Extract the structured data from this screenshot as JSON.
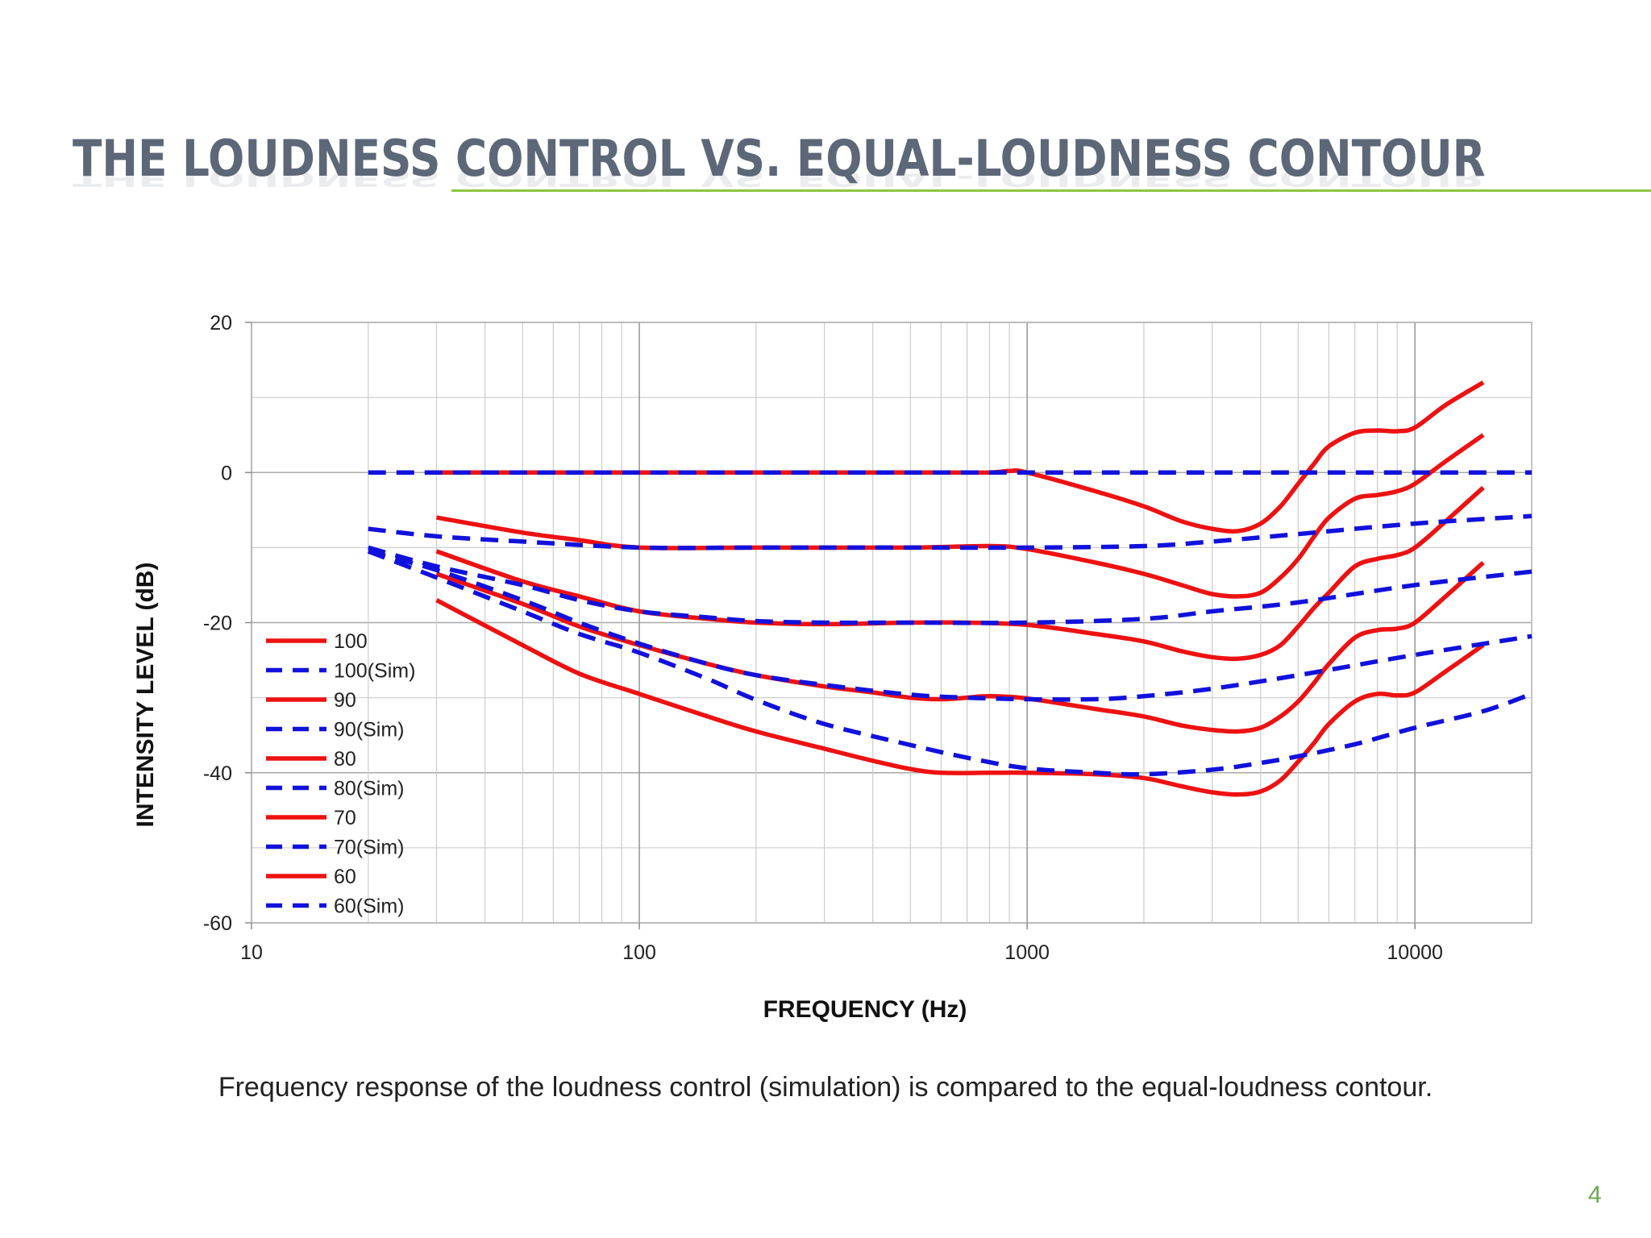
{
  "slide": {
    "title": "THE LOUDNESS CONTROL VS. EQUAL-LOUDNESS CONTOUR",
    "caption": "Frequency response of the loudness control (simulation) is compared to the equal-loudness contour.",
    "page_number": "4",
    "accent_color": "#8cc63f",
    "title_color": "#5c6778"
  },
  "chart_data": {
    "type": "line",
    "title": "",
    "xlabel": "FREQUENCY (Hz)",
    "ylabel": "INTENSITY LEVEL (dB)",
    "xscale": "log",
    "xlim": [
      10,
      20000
    ],
    "ylim": [
      -60,
      20
    ],
    "xticks": [
      10,
      100,
      1000,
      10000
    ],
    "xtick_labels": [
      "10",
      "100",
      "1000",
      "10000"
    ],
    "yticks": [
      -60,
      -40,
      -20,
      0,
      20
    ],
    "ytick_labels": [
      "-60",
      "-40",
      "-20",
      "0",
      "20"
    ],
    "grid": true,
    "legend_position": "bottom-left",
    "series": [
      {
        "name": "100",
        "color": "#ee1111",
        "style": "solid",
        "points": [
          [
            30,
            0
          ],
          [
            50,
            0
          ],
          [
            100,
            0
          ],
          [
            300,
            0
          ],
          [
            600,
            0
          ],
          [
            800,
            0
          ],
          [
            900,
            0.2
          ],
          [
            1000,
            0
          ],
          [
            1500,
            -2.5
          ],
          [
            2000,
            -4.5
          ],
          [
            2500,
            -6.5
          ],
          [
            3000,
            -7.5
          ],
          [
            3500,
            -7.8
          ],
          [
            4000,
            -6.8
          ],
          [
            4500,
            -4.5
          ],
          [
            5000,
            -1.5
          ],
          [
            5500,
            1.2
          ],
          [
            6000,
            3.5
          ],
          [
            7000,
            5.3
          ],
          [
            8000,
            5.6
          ],
          [
            9000,
            5.5
          ],
          [
            10000,
            6
          ],
          [
            12000,
            9
          ],
          [
            15000,
            12
          ]
        ]
      },
      {
        "name": "100(Sim)",
        "color": "#1111dd",
        "style": "dashed",
        "points": [
          [
            20,
            0
          ],
          [
            50,
            0
          ],
          [
            100,
            0
          ],
          [
            1000,
            0
          ],
          [
            5000,
            0
          ],
          [
            10000,
            0
          ],
          [
            20000,
            0
          ]
        ]
      },
      {
        "name": "90",
        "color": "#ee1111",
        "style": "solid",
        "points": [
          [
            30,
            -6
          ],
          [
            50,
            -8
          ],
          [
            70,
            -9
          ],
          [
            100,
            -10
          ],
          [
            200,
            -10
          ],
          [
            500,
            -10
          ],
          [
            800,
            -9.8
          ],
          [
            1000,
            -10.2
          ],
          [
            1500,
            -12
          ],
          [
            2000,
            -13.5
          ],
          [
            2500,
            -15
          ],
          [
            3000,
            -16.2
          ],
          [
            3500,
            -16.5
          ],
          [
            4000,
            -16
          ],
          [
            4500,
            -14
          ],
          [
            5000,
            -11.5
          ],
          [
            5500,
            -8.5
          ],
          [
            6000,
            -6
          ],
          [
            7000,
            -3.5
          ],
          [
            8000,
            -3
          ],
          [
            9000,
            -2.5
          ],
          [
            10000,
            -1.5
          ],
          [
            12000,
            1.5
          ],
          [
            15000,
            5
          ]
        ]
      },
      {
        "name": "90(Sim)",
        "color": "#1111dd",
        "style": "dashed",
        "points": [
          [
            20,
            -7.5
          ],
          [
            30,
            -8.5
          ],
          [
            50,
            -9.2
          ],
          [
            100,
            -10
          ],
          [
            200,
            -10
          ],
          [
            500,
            -10
          ],
          [
            1000,
            -10
          ],
          [
            2000,
            -9.8
          ],
          [
            3000,
            -9.2
          ],
          [
            5000,
            -8.2
          ],
          [
            10000,
            -6.8
          ],
          [
            20000,
            -5.8
          ]
        ]
      },
      {
        "name": "80",
        "color": "#ee1111",
        "style": "solid",
        "points": [
          [
            30,
            -10.5
          ],
          [
            50,
            -14.5
          ],
          [
            70,
            -16.5
          ],
          [
            100,
            -18.5
          ],
          [
            150,
            -19.5
          ],
          [
            200,
            -20
          ],
          [
            300,
            -20.2
          ],
          [
            500,
            -20
          ],
          [
            700,
            -20
          ],
          [
            1000,
            -20.3
          ],
          [
            1500,
            -21.5
          ],
          [
            2000,
            -22.5
          ],
          [
            2500,
            -23.8
          ],
          [
            3000,
            -24.6
          ],
          [
            3500,
            -24.8
          ],
          [
            4000,
            -24.3
          ],
          [
            4500,
            -23
          ],
          [
            5000,
            -20.5
          ],
          [
            5500,
            -18
          ],
          [
            6000,
            -16
          ],
          [
            7000,
            -12.5
          ],
          [
            8000,
            -11.5
          ],
          [
            9000,
            -11
          ],
          [
            10000,
            -10
          ],
          [
            12000,
            -6.5
          ],
          [
            15000,
            -2
          ]
        ]
      },
      {
        "name": "80(Sim)",
        "color": "#1111dd",
        "style": "dashed",
        "points": [
          [
            20,
            -10
          ],
          [
            30,
            -12.5
          ],
          [
            50,
            -15
          ],
          [
            70,
            -17
          ],
          [
            100,
            -18.5
          ],
          [
            150,
            -19.3
          ],
          [
            200,
            -19.8
          ],
          [
            300,
            -20
          ],
          [
            500,
            -20
          ],
          [
            1000,
            -20
          ],
          [
            2000,
            -19.5
          ],
          [
            3000,
            -18.5
          ],
          [
            5000,
            -17.3
          ],
          [
            10000,
            -15
          ],
          [
            20000,
            -13.2
          ]
        ]
      },
      {
        "name": "70",
        "color": "#ee1111",
        "style": "solid",
        "points": [
          [
            30,
            -13.5
          ],
          [
            50,
            -17.5
          ],
          [
            70,
            -20.5
          ],
          [
            100,
            -23
          ],
          [
            150,
            -25.5
          ],
          [
            200,
            -27
          ],
          [
            300,
            -28.5
          ],
          [
            400,
            -29.3
          ],
          [
            500,
            -30
          ],
          [
            600,
            -30.2
          ],
          [
            700,
            -30
          ],
          [
            800,
            -29.8
          ],
          [
            1000,
            -30.1
          ],
          [
            1500,
            -31.5
          ],
          [
            2000,
            -32.5
          ],
          [
            2500,
            -33.7
          ],
          [
            3000,
            -34.3
          ],
          [
            3500,
            -34.5
          ],
          [
            4000,
            -34
          ],
          [
            4500,
            -32.5
          ],
          [
            5000,
            -30.5
          ],
          [
            5500,
            -28
          ],
          [
            6000,
            -25.5
          ],
          [
            7000,
            -22
          ],
          [
            8000,
            -21
          ],
          [
            9000,
            -20.8
          ],
          [
            10000,
            -20
          ],
          [
            12000,
            -16.5
          ],
          [
            15000,
            -12
          ]
        ]
      },
      {
        "name": "70(Sim)",
        "color": "#1111dd",
        "style": "dashed",
        "points": [
          [
            20,
            -10.5
          ],
          [
            30,
            -13
          ],
          [
            50,
            -17
          ],
          [
            70,
            -20
          ],
          [
            100,
            -22.8
          ],
          [
            150,
            -25.5
          ],
          [
            200,
            -27
          ],
          [
            300,
            -28.3
          ],
          [
            500,
            -29.6
          ],
          [
            700,
            -30
          ],
          [
            1000,
            -30.2
          ],
          [
            1500,
            -30.2
          ],
          [
            2000,
            -29.8
          ],
          [
            3000,
            -28.8
          ],
          [
            5000,
            -27
          ],
          [
            10000,
            -24.3
          ],
          [
            20000,
            -21.8
          ]
        ]
      },
      {
        "name": "60",
        "color": "#ee1111",
        "style": "solid",
        "points": [
          [
            30,
            -17
          ],
          [
            50,
            -23
          ],
          [
            70,
            -26.8
          ],
          [
            100,
            -29.5
          ],
          [
            150,
            -32.5
          ],
          [
            200,
            -34.5
          ],
          [
            300,
            -36.8
          ],
          [
            400,
            -38.4
          ],
          [
            500,
            -39.5
          ],
          [
            600,
            -40
          ],
          [
            800,
            -40
          ],
          [
            1000,
            -40
          ],
          [
            1500,
            -40.2
          ],
          [
            2000,
            -40.7
          ],
          [
            2500,
            -41.8
          ],
          [
            3000,
            -42.6
          ],
          [
            3500,
            -42.9
          ],
          [
            4000,
            -42.5
          ],
          [
            4500,
            -41
          ],
          [
            5000,
            -38.5
          ],
          [
            5500,
            -36
          ],
          [
            6000,
            -33.5
          ],
          [
            7000,
            -30.5
          ],
          [
            8000,
            -29.5
          ],
          [
            9000,
            -29.7
          ],
          [
            10000,
            -29.3
          ],
          [
            12000,
            -26.5
          ],
          [
            15000,
            -23
          ]
        ]
      },
      {
        "name": "60(Sim)",
        "color": "#1111dd",
        "style": "dashed",
        "points": [
          [
            20,
            -10.5
          ],
          [
            30,
            -14
          ],
          [
            50,
            -18.5
          ],
          [
            70,
            -21.5
          ],
          [
            100,
            -24
          ],
          [
            150,
            -27.5
          ],
          [
            200,
            -30.3
          ],
          [
            300,
            -33.5
          ],
          [
            500,
            -36.3
          ],
          [
            700,
            -38
          ],
          [
            1000,
            -39.4
          ],
          [
            1500,
            -40
          ],
          [
            2000,
            -40.2
          ],
          [
            3000,
            -39.6
          ],
          [
            4000,
            -38.7
          ],
          [
            5000,
            -37.8
          ],
          [
            7000,
            -36.2
          ],
          [
            10000,
            -34
          ],
          [
            15000,
            -31.8
          ],
          [
            20000,
            -29.5
          ]
        ]
      }
    ]
  }
}
